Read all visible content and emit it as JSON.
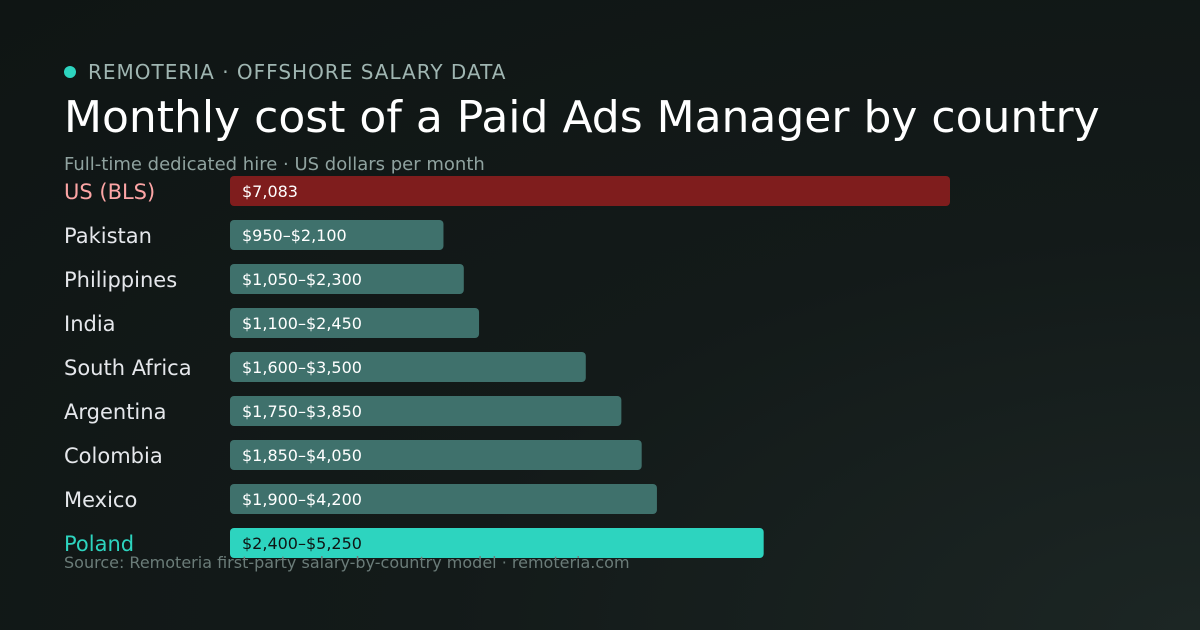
{
  "header": {
    "brand": "REMOTERIA · OFFSHORE SALARY DATA",
    "title": "Monthly cost of a Paid Ads Manager by country",
    "subtitle": "Full-time dedicated hire · US dollars per month"
  },
  "footer": {
    "source": "Source: Remoteria first-party salary-by-country model · remoteria.com"
  },
  "colors": {
    "brand_dot": "#2dd4bf",
    "us_bar": "#7f1d1d",
    "us_label": "#fca5a5",
    "default_bar": "#3f716c",
    "highlight_bar": "#2dd4bf",
    "highlight_label": "#2dd4bf",
    "default_label": "#e5e7eb"
  },
  "chart_data": {
    "type": "bar",
    "orientation": "horizontal",
    "grid": false,
    "xlim": [
      0,
      7083
    ],
    "categories": [
      "US (BLS)",
      "Pakistan",
      "Philippines",
      "India",
      "South Africa",
      "Argentina",
      "Colombia",
      "Mexico",
      "Poland"
    ],
    "values": [
      7083,
      2100,
      2300,
      2450,
      3500,
      3850,
      4050,
      4200,
      5250
    ],
    "data_labels": [
      "$7,083",
      "$950–$2,100",
      "$1,050–$2,300",
      "$1,100–$2,450",
      "$1,600–$3,500",
      "$1,750–$3,850",
      "$1,850–$4,050",
      "$1,900–$4,200",
      "$2,400–$5,250"
    ],
    "styles": [
      "us",
      "default",
      "default",
      "default",
      "default",
      "default",
      "default",
      "default",
      "highlight"
    ]
  }
}
